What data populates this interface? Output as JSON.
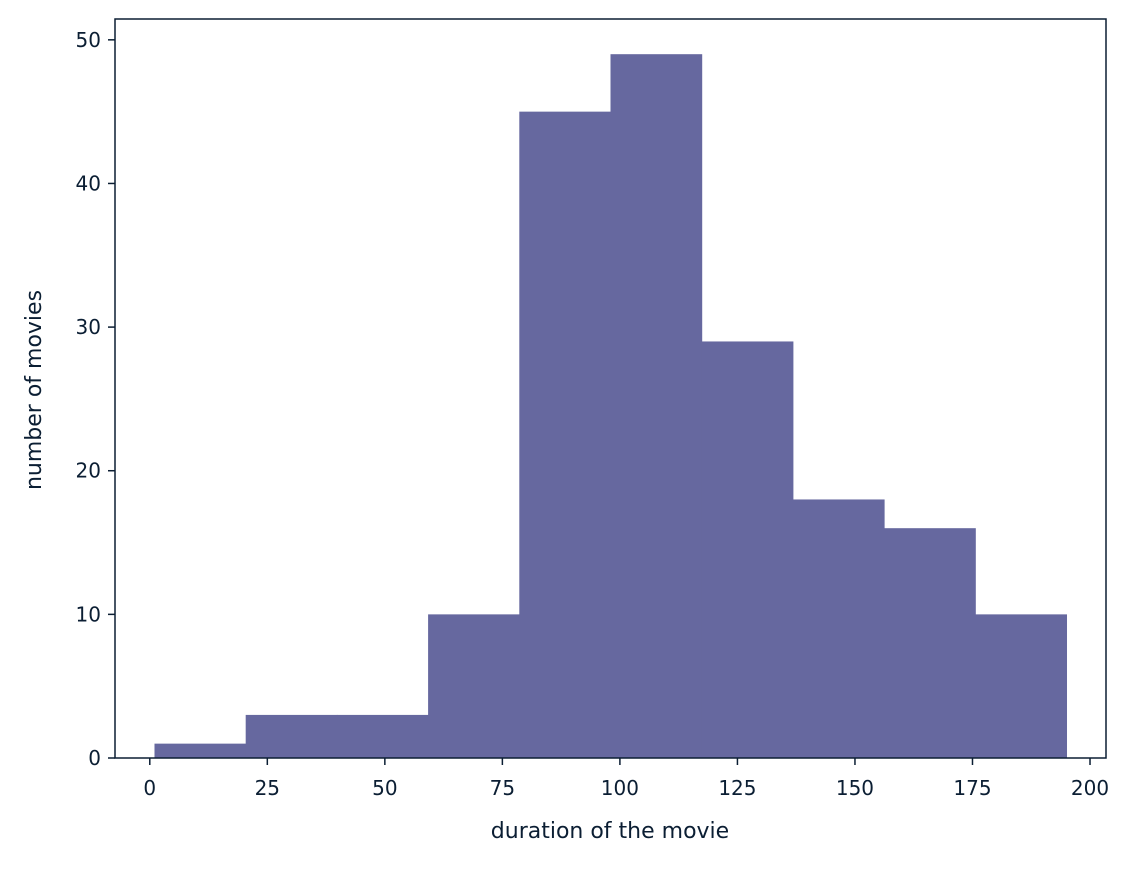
{
  "chart_data": {
    "type": "bar",
    "title": "",
    "xlabel": "duration of the movie",
    "ylabel": "number of movies",
    "bin_edges": [
      1.0,
      20.4,
      39.8,
      59.2,
      78.6,
      98.0,
      117.4,
      136.8,
      156.2,
      175.6,
      195.0
    ],
    "values": [
      1,
      3,
      3,
      10,
      45,
      49,
      29,
      18,
      16,
      10
    ],
    "xlim": [
      -7.4,
      203.4
    ],
    "ylim": [
      0,
      51.45
    ],
    "xticks": [
      0,
      25,
      50,
      75,
      100,
      125,
      150,
      175,
      200
    ],
    "yticks": [
      0,
      10,
      20,
      30,
      40,
      50
    ],
    "grid": false,
    "bar_color": "#66689f",
    "axis_color": "#0b1e33"
  }
}
